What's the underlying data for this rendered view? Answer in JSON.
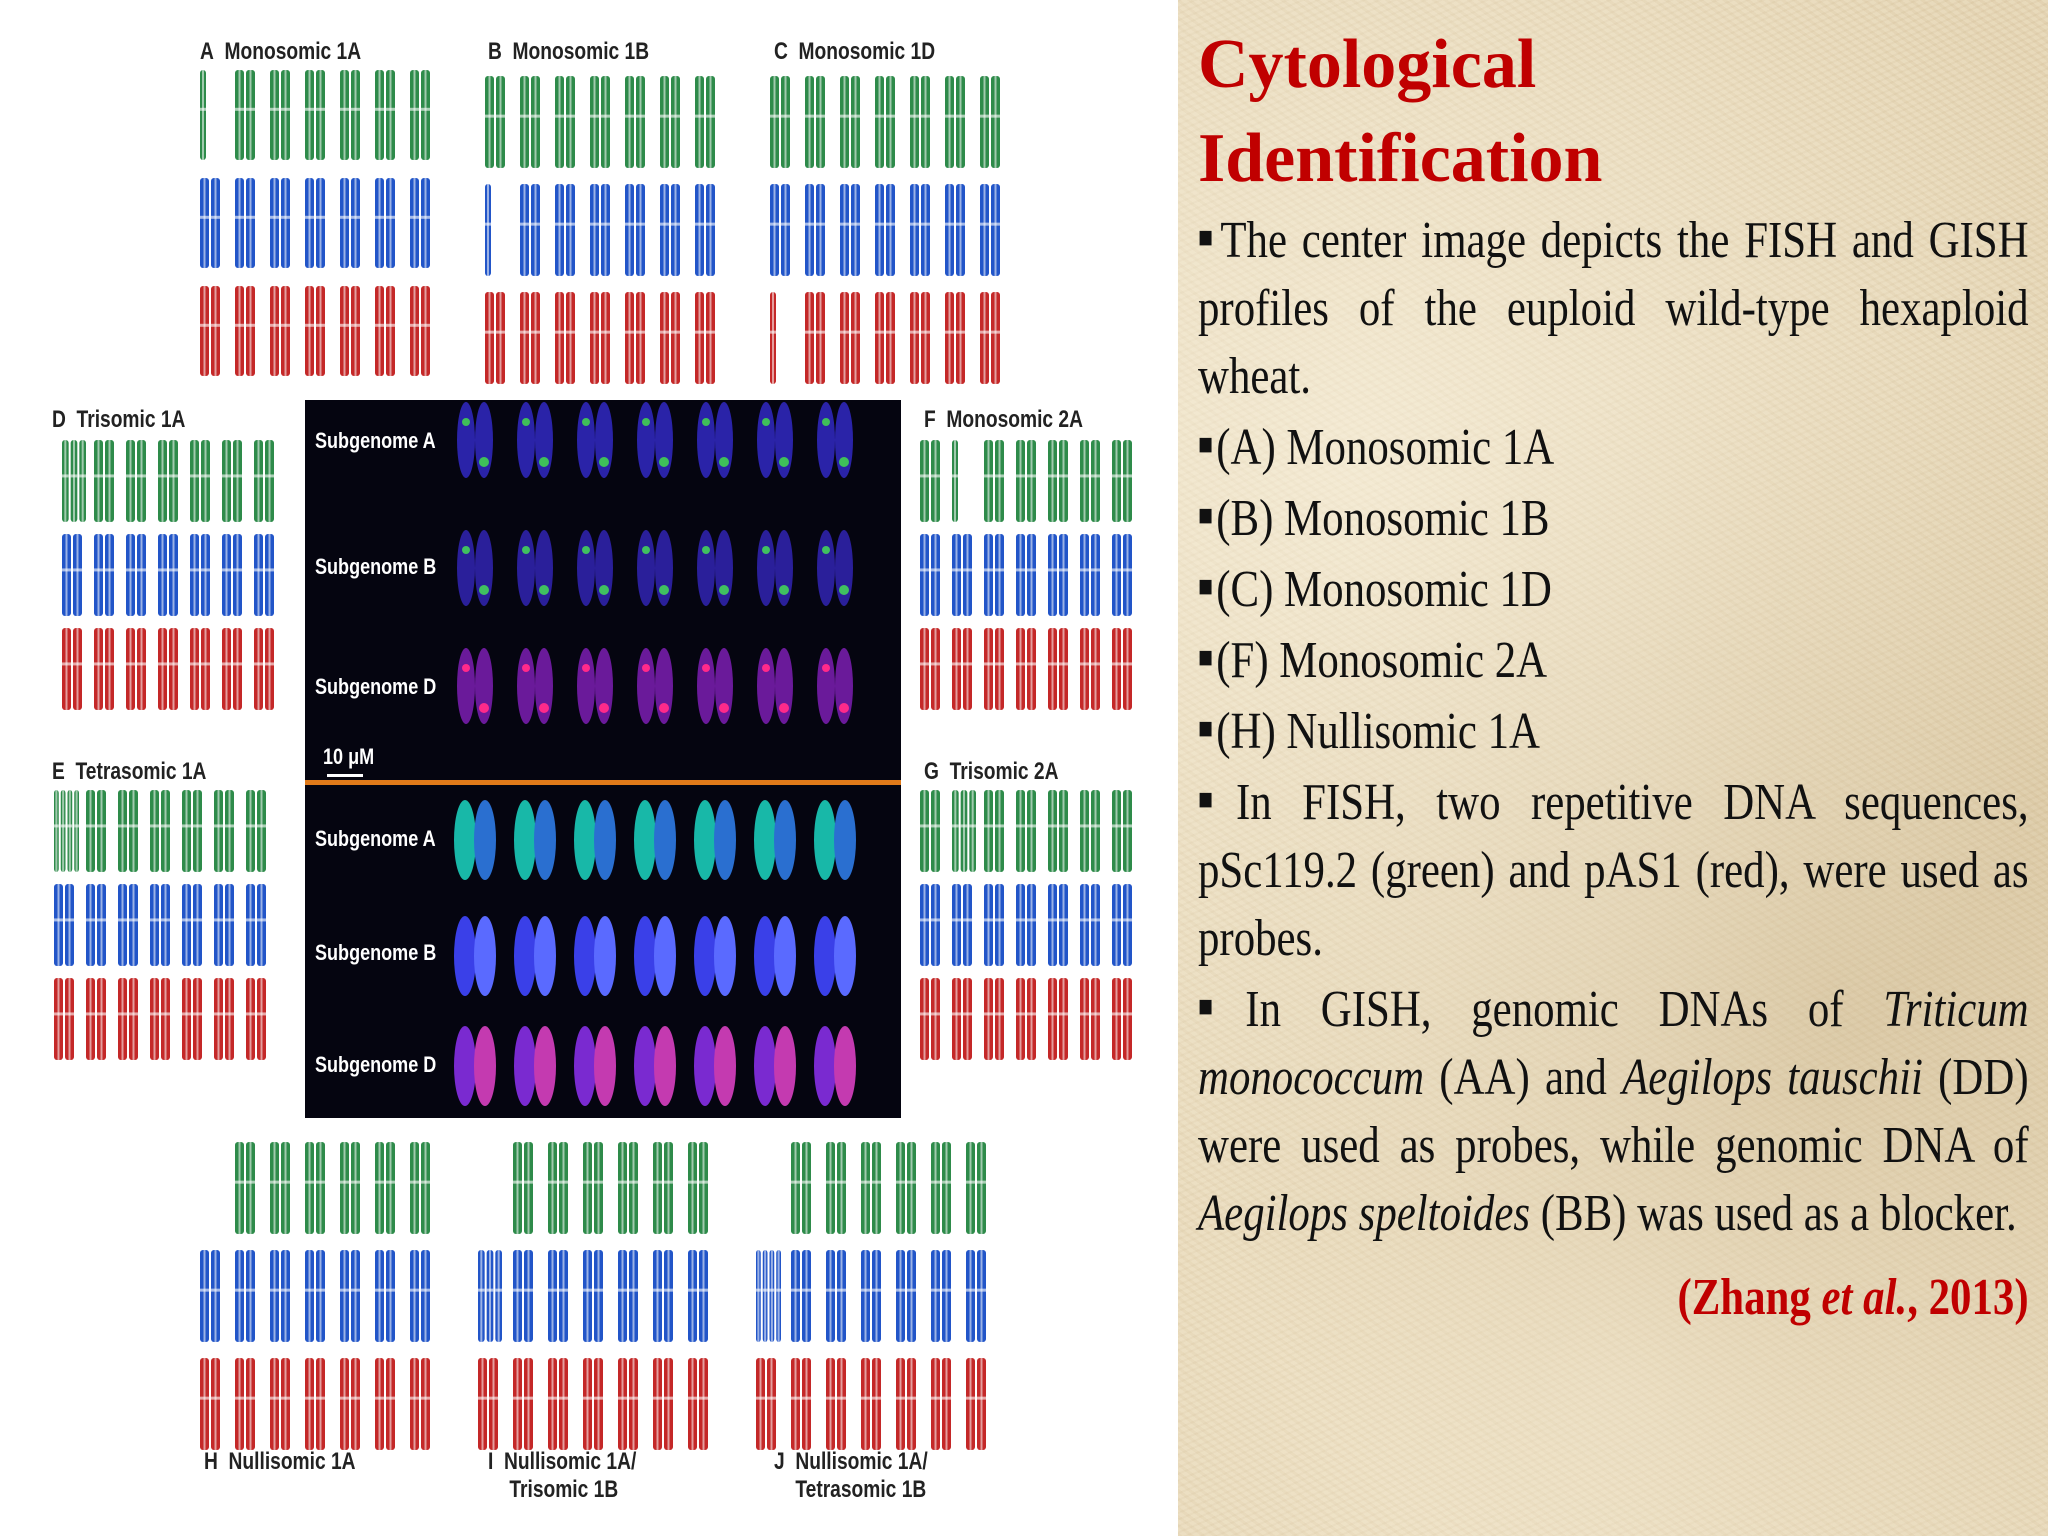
{
  "slide": {
    "title_line1": "Cytological",
    "title_line2": "Identification",
    "bullet_glyph": "■",
    "paragraphs": {
      "p1": "The center image depicts the FISH and GISH profiles of the euploid wild-type hexaploid wheat.",
      "p2": "(A) Monosomic 1A",
      "p3": "(B) Monosomic 1B",
      "p4": "(C) Monosomic 1D",
      "p5": "(F) Monosomic 2A",
      "p6": "(H) Nullisomic 1A",
      "p7": "In FISH, two repetitive DNA sequences, pSc119.2 (green) and pAS1 (red), were used as probes.",
      "p8_a": "In GISH, genomic DNAs of ",
      "p8_species1": "Triticum monococcum",
      "p8_b": " (AA) and ",
      "p8_species2": "Aegilops tauschii",
      "p8_c": " (DD) were used as probes, while genomic DNA of ",
      "p8_species3": "Aegilops speltoides",
      "p8_d": " (BB) was used as a blocker."
    },
    "citation": {
      "open": "(Zhang ",
      "etal": "et al.",
      "close": ", 2013)"
    }
  },
  "figure": {
    "panels": {
      "A": {
        "letter": "A",
        "name": "Monosomic 1A"
      },
      "B": {
        "letter": "B",
        "name": "Monosomic 1B"
      },
      "C": {
        "letter": "C",
        "name": "Monosomic 1D"
      },
      "D": {
        "letter": "D",
        "name": "Trisomic 1A"
      },
      "E": {
        "letter": "E",
        "name": "Tetrasomic 1A"
      },
      "F": {
        "letter": "F",
        "name": "Monosomic 2A"
      },
      "G": {
        "letter": "G",
        "name": "Trisomic 2A"
      },
      "H": {
        "letter": "H",
        "name": "Nullisomic 1A"
      },
      "I": {
        "letter": "I",
        "name_line1": "Nullisomic 1A/",
        "name_line2": "Trisomic 1B"
      },
      "J": {
        "letter": "J",
        "name_line1": "Nullisomic 1A/",
        "name_line2": "Tetrasomic 1B"
      }
    },
    "center": {
      "fish_rows": [
        "Subgenome A",
        "Subgenome B",
        "Subgenome D"
      ],
      "gish_rows": [
        "Subgenome A",
        "Subgenome B",
        "Subgenome D"
      ],
      "scale_bar": "10 μM"
    },
    "colors": {
      "genome_a": "#2e8b4a",
      "genome_b": "#2255c8",
      "genome_d": "#c42828",
      "divider": "#e07a1a",
      "title_red": "#c00000"
    }
  }
}
